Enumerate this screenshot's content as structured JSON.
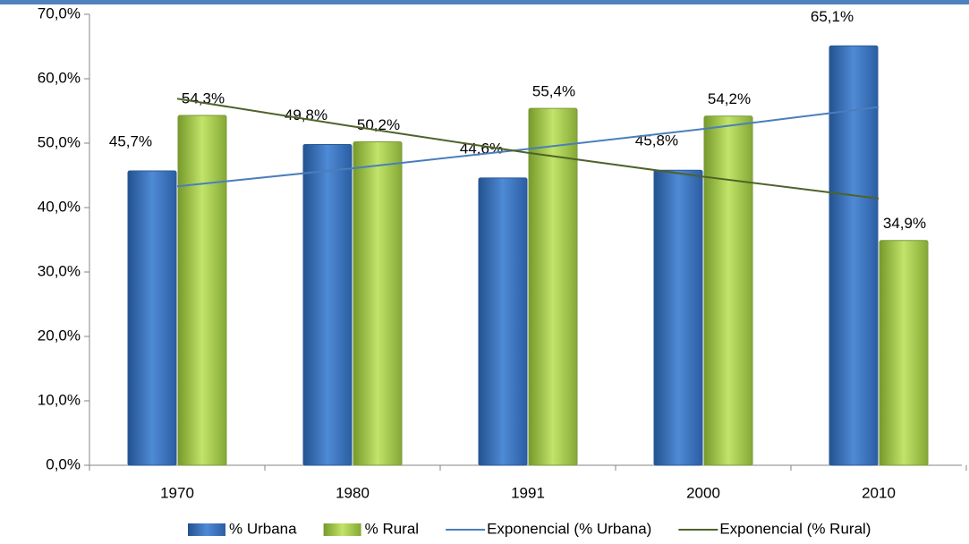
{
  "chart_data": {
    "type": "bar",
    "categories": [
      "1970",
      "1980",
      "1991",
      "2000",
      "2010"
    ],
    "series": [
      {
        "name": "% Urbana",
        "color": "#4f81bd",
        "values": [
          45.7,
          49.8,
          44.6,
          45.8,
          65.1
        ],
        "value_labels": [
          "45,7%",
          "49,8%",
          "44,6%",
          "45,8%",
          "65,1%"
        ]
      },
      {
        "name": "% Rural",
        "color": "#9bbb59",
        "values": [
          54.3,
          50.2,
          55.4,
          54.2,
          34.9
        ],
        "value_labels": [
          "54,3%",
          "50,2%",
          "55,4%",
          "54,2%",
          "34,9%"
        ]
      },
      {
        "name": "Exponencial (% Urbana)",
        "type": "line",
        "color": "#4a7ebb",
        "values": [
          43.3,
          46.1,
          49.1,
          52.2,
          55.6
        ]
      },
      {
        "name": "Exponencial (% Rural)",
        "type": "line",
        "color": "#4f6228",
        "values": [
          56.9,
          52.6,
          48.5,
          44.8,
          41.4
        ]
      }
    ],
    "ylim": [
      0,
      70
    ],
    "yticks": [
      {
        "value": 0,
        "label": "0,0%"
      },
      {
        "value": 10,
        "label": "10,0%"
      },
      {
        "value": 20,
        "label": "20,0%"
      },
      {
        "value": 30,
        "label": "30,0%"
      },
      {
        "value": 40,
        "label": "40,0%"
      },
      {
        "value": 50,
        "label": "50,0%"
      },
      {
        "value": 60,
        "label": "60,0%"
      },
      {
        "value": 70,
        "label": "70,0%"
      }
    ],
    "legend": "bottom"
  }
}
